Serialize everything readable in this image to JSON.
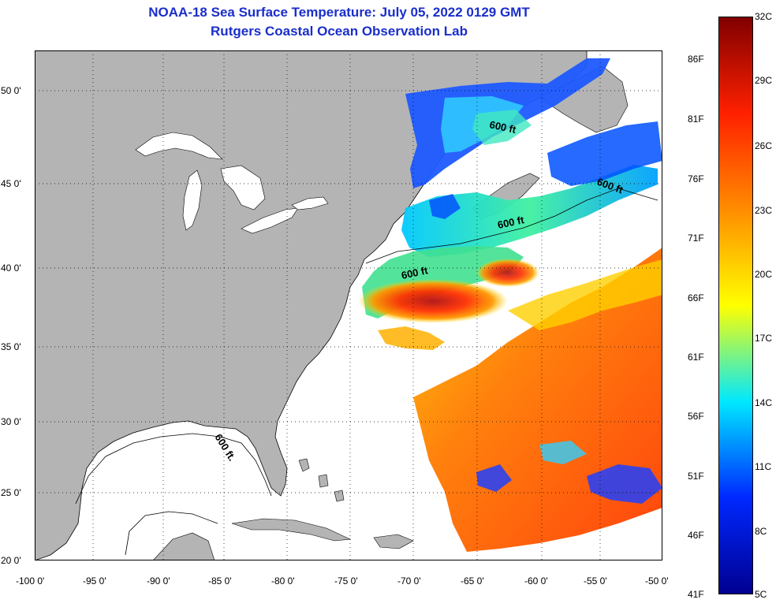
{
  "header": {
    "title": "NOAA-18 Sea Surface Temperature:  July 05, 2022 0129 GMT",
    "subtitle": "Rutgers Coastal Ocean Observation Lab"
  },
  "map": {
    "lon_range": [
      -100,
      -50
    ],
    "lat_range": [
      20,
      52
    ],
    "lon_labels": [
      "-100 0'",
      "-95 0'",
      "-90 0'",
      "-85 0'",
      "-80 0'",
      "-75 0'",
      "-70 0'",
      "-65 0'",
      "-60 0'",
      "-55 0'",
      "-50 0'"
    ],
    "lat_labels": [
      "50 0'",
      "45 0'",
      "40 0'",
      "35 0'",
      "30 0'",
      "25 0'",
      "20 0'"
    ],
    "land_color": "#b4b4b4",
    "no_data_color": "#ffffff",
    "gridlines": "dotted",
    "isobath_labels": [
      "600 ft",
      "600 ft",
      "600 ft",
      "600 ft.",
      "600 ft"
    ]
  },
  "colorbar": {
    "celsius_labels": [
      "32C",
      "29C",
      "26C",
      "23C",
      "20C",
      "17C",
      "14C",
      "11C",
      "8C",
      "5C"
    ],
    "fahrenheit_labels": [
      "86F",
      "81F",
      "76F",
      "71F",
      "66F",
      "61F",
      "56F",
      "51F",
      "46F",
      "41F"
    ],
    "colors": {
      "max": "#800000",
      "hot": "#ff2000",
      "warm": "#ff8c00",
      "mild": "#ffff00",
      "cool": "#00e8ff",
      "cold": "#0028ff",
      "min": "#000090"
    }
  }
}
